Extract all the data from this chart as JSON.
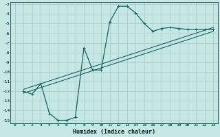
{
  "title": "",
  "xlabel": "Humidex (Indice chaleur)",
  "background_color": "#c5e8e5",
  "grid_color": "#a8d0cc",
  "line_color": "#1a6060",
  "xlim": [
    -0.5,
    23.5
  ],
  "ylim": [
    -15.3,
    -2.8
  ],
  "xticks": [
    0,
    1,
    2,
    3,
    4,
    5,
    6,
    7,
    8,
    9,
    10,
    11,
    12,
    13,
    14,
    15,
    16,
    17,
    18,
    19,
    20,
    21,
    22,
    23
  ],
  "yticks": [
    -3,
    -4,
    -5,
    -6,
    -7,
    -8,
    -9,
    -10,
    -11,
    -12,
    -13,
    -14,
    -15
  ],
  "curve_x": [
    1,
    2,
    3,
    4,
    5,
    6,
    7,
    8,
    9,
    10,
    11,
    12,
    13,
    14,
    15,
    16,
    17,
    18,
    19,
    20,
    21,
    22,
    23
  ],
  "curve_y": [
    -12.0,
    -12.3,
    -11.2,
    -14.3,
    -15.0,
    -15.0,
    -14.7,
    -7.5,
    -9.8,
    -9.8,
    -4.8,
    -3.2,
    -3.2,
    -3.9,
    -5.0,
    -5.8,
    -5.5,
    -5.4,
    -5.5,
    -5.6,
    -5.6,
    -5.6,
    -5.6
  ],
  "line2_x": [
    1,
    23
  ],
  "line2_y": [
    -11.8,
    -5.4
  ],
  "line3_x": [
    1,
    23
  ],
  "line3_y": [
    -12.2,
    -5.8
  ]
}
